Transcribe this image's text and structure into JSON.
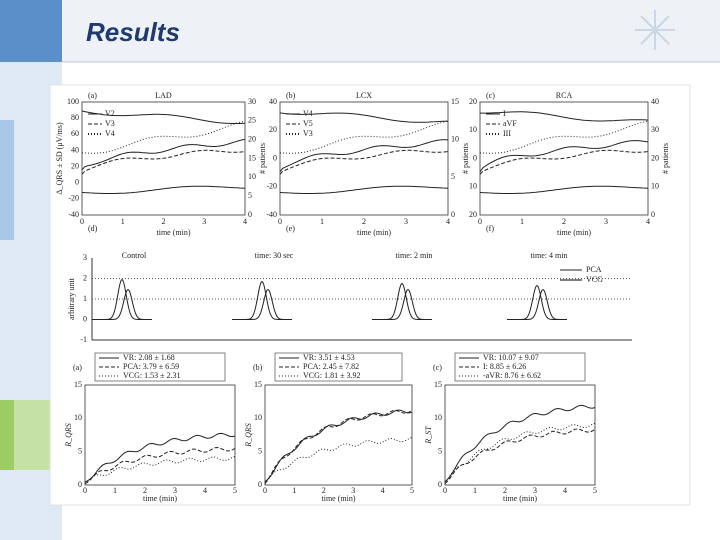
{
  "header": {
    "title": "Results"
  },
  "top_panels": [
    {
      "label": "(a)",
      "title": "LAD",
      "legend": [
        "V2",
        "V3",
        "V4"
      ],
      "sub_label": "(d)",
      "xlabel": "time (min)",
      "ylabel": "Δ_QRS ± SD (μV/ms)",
      "y2label": "# patients",
      "yticks": [
        "100",
        "80",
        "60",
        "40",
        "20",
        "0",
        "-20",
        "-40"
      ],
      "y2ticks": [
        "30",
        "25",
        "20",
        "15",
        "10",
        "5",
        "0"
      ],
      "xticks": [
        "0",
        "1",
        "2",
        "3",
        "4"
      ]
    },
    {
      "label": "(b)",
      "title": "LCX",
      "legend": [
        "V4",
        "V5",
        "V3"
      ],
      "sub_label": "(e)",
      "xlabel": "time (min)",
      "y2label": "# patients",
      "yticks": [
        "40",
        "20",
        "0",
        "-20",
        "-40"
      ],
      "y2ticks": [
        "15",
        "10",
        "5",
        "0"
      ],
      "xticks": [
        "0",
        "1",
        "2",
        "3",
        "4"
      ]
    },
    {
      "label": "(c)",
      "title": "RCA",
      "legend": [
        "I",
        "aVF",
        "III"
      ],
      "sub_label": "(f)",
      "xlabel": "time (min)",
      "y2label": "# patients",
      "yticks": [
        "20",
        "10",
        "0",
        "10",
        "20"
      ],
      "y2ticks": [
        "40",
        "30",
        "20",
        "10",
        "0"
      ],
      "xticks": [
        "0",
        "1",
        "2",
        "3",
        "4"
      ]
    }
  ],
  "middle_panel": {
    "labels": [
      "Control",
      "time: 30 sec",
      "time: 2 min",
      "time: 4 min"
    ],
    "legend": [
      "PCA",
      "VCG"
    ],
    "ylabel": "arbitrary unit",
    "yticks": [
      "3",
      "2",
      "1",
      "0",
      "-1"
    ]
  },
  "bottom_panels": [
    {
      "label": "(a)",
      "legend": [
        "VR: 2.08 ± 1.68",
        "PCA: 3.79 ± 6.59",
        "VCG: 1.53 ± 2.31"
      ],
      "ylabel": "R_QRS",
      "xlabel": "time (min)",
      "yticks": [
        "15",
        "10",
        "5",
        "0"
      ],
      "xticks": [
        "0",
        "1",
        "2",
        "3",
        "4",
        "5"
      ]
    },
    {
      "label": "(b)",
      "legend": [
        "VR: 3.51 ± 4.53",
        "PCA: 2.45 ± 7.82",
        "VCG: 1.81 ± 3.92"
      ],
      "ylabel": "R_QRS",
      "xlabel": "time (min)",
      "yticks": [
        "15",
        "10",
        "5",
        "0"
      ],
      "xticks": [
        "0",
        "1",
        "2",
        "3",
        "4",
        "5"
      ]
    },
    {
      "label": "(c)",
      "legend": [
        "VR: 10.07 ± 9.07",
        "I: 8.85 ± 6.26",
        "-aVR: 8.76 ± 6.62"
      ],
      "ylabel": "R_ST",
      "xlabel": "time (min)",
      "yticks": [
        "15",
        "10",
        "5",
        "0"
      ],
      "xticks": [
        "0",
        "1",
        "2",
        "3",
        "4",
        "5"
      ]
    }
  ]
}
